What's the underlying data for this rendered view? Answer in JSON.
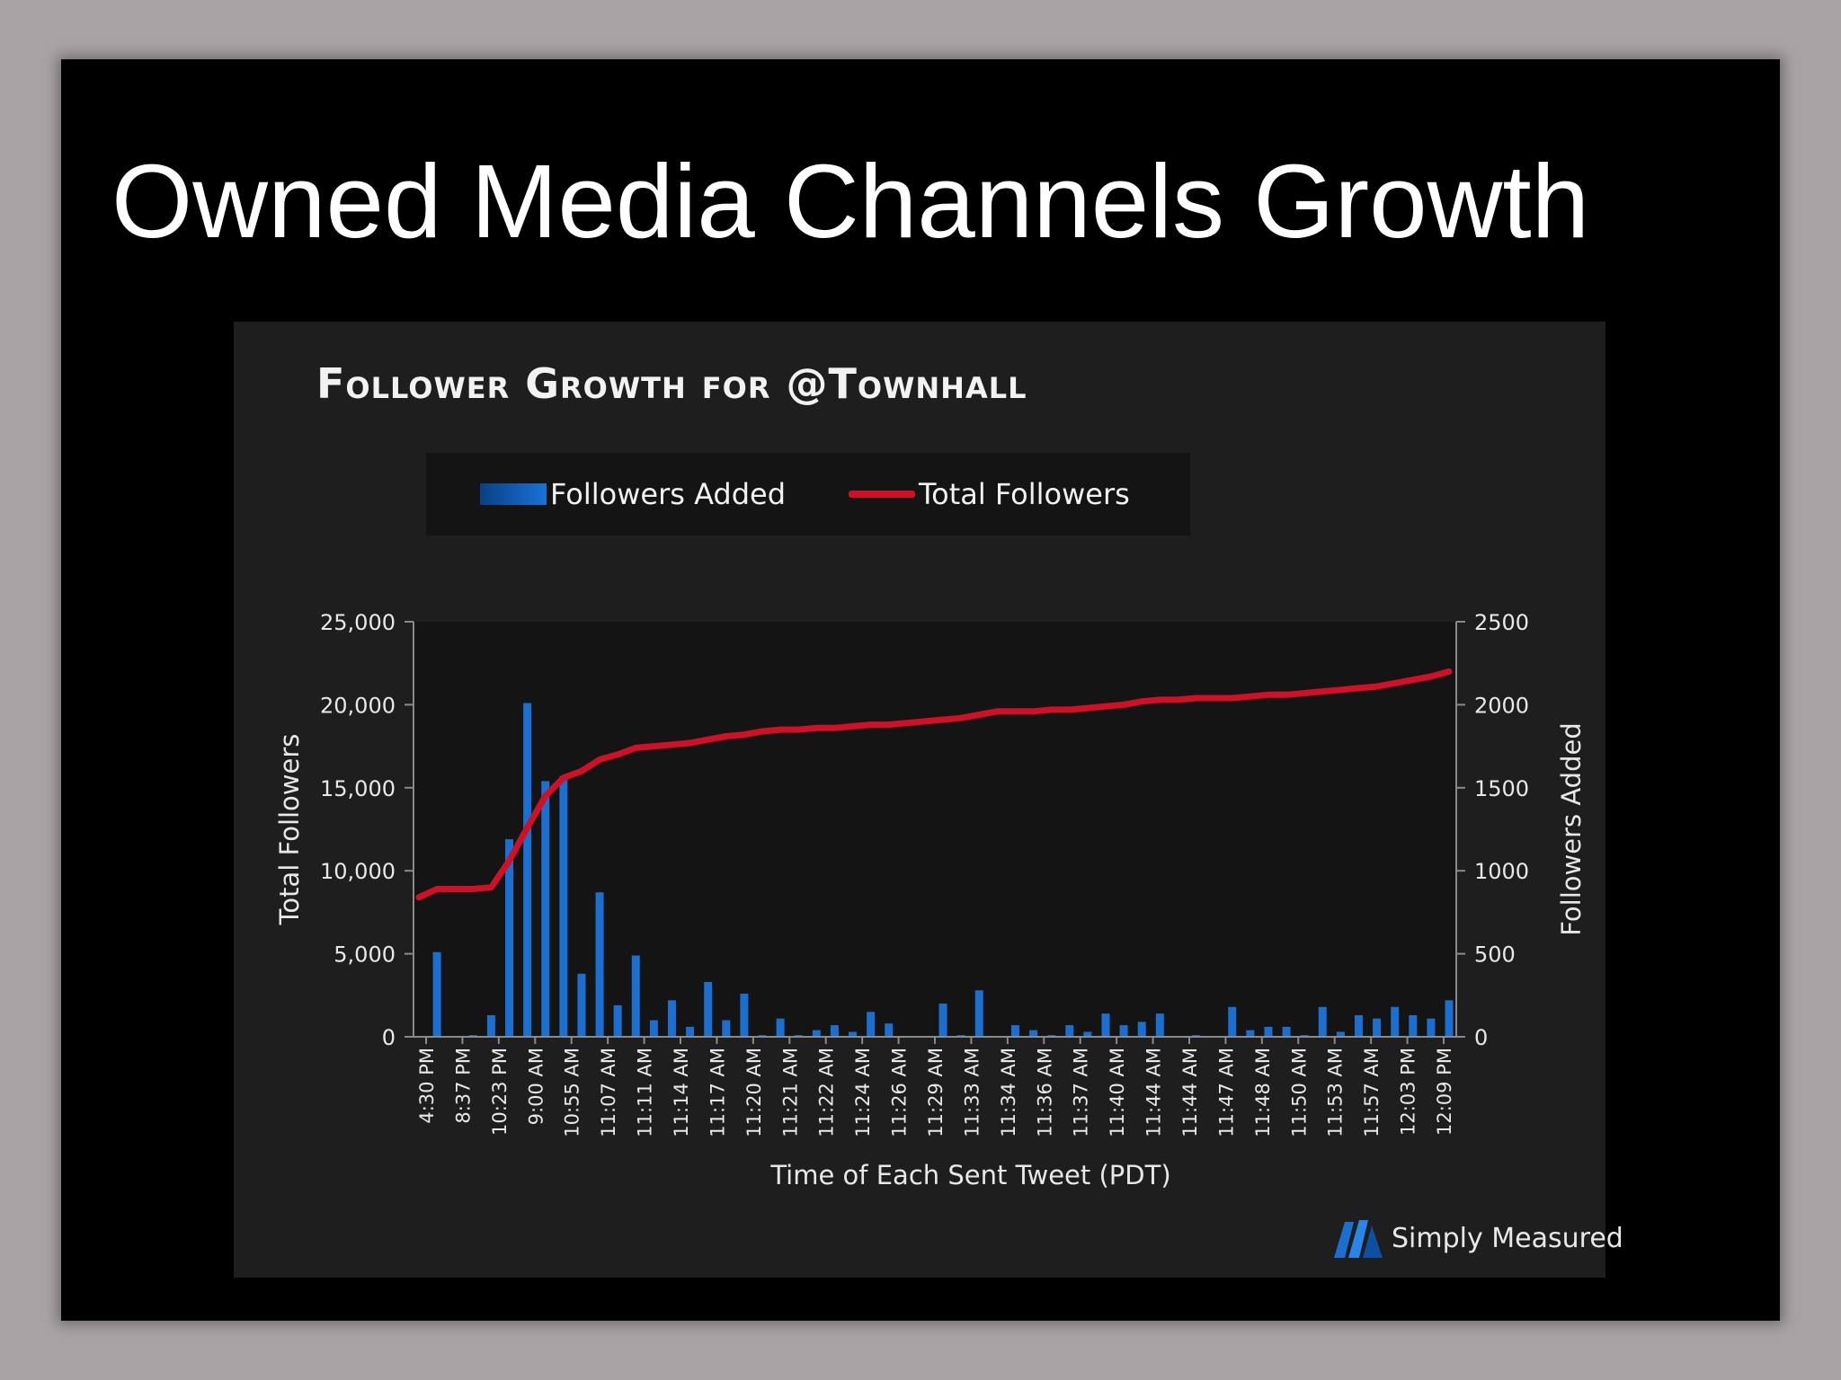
{
  "slide": {
    "title": "Owned Media Channels Growth",
    "brand": "Simply Measured",
    "brand_icon": "simply-measured-logo-icon"
  },
  "colors": {
    "bar": "#1a6fd1",
    "line": "#d01026",
    "panel": "#1e1e1e",
    "text": "#e8e8e8"
  },
  "chart_data": {
    "type": "bar+line",
    "title": "Follower Growth for @Townhall",
    "xlabel": "Time of Each Sent Tweet  (PDT)",
    "ylabel_left": "Total Followers",
    "ylabel_right": "Followers Added",
    "ylim_left": [
      0,
      25000
    ],
    "ylim_right": [
      0,
      2500
    ],
    "yticks_left": [
      "0",
      "5,000",
      "10,000",
      "15,000",
      "20,000",
      "25,000"
    ],
    "yticks_right": [
      "0",
      "500",
      "1000",
      "1500",
      "2000",
      "2500"
    ],
    "legend": [
      "Followers Added",
      "Total Followers"
    ],
    "legend_position": "top",
    "x_tick_labels": [
      "4:30 PM",
      "8:37 PM",
      "10:23 PM",
      "9:00 AM",
      "10:55 AM",
      "11:07 AM",
      "11:11 AM",
      "11:14 AM",
      "11:17 AM",
      "11:20 AM",
      "11:21 AM",
      "11:22 AM",
      "11:24 AM",
      "11:26 AM",
      "11:29 AM",
      "11:33 AM",
      "11:34 AM",
      "11:36 AM",
      "11:37 AM",
      "11:40 AM",
      "11:44 AM",
      "11:44 AM",
      "11:47 AM",
      "11:48 AM",
      "11:50 AM",
      "11:53 AM",
      "11:57 AM",
      "12:03 PM",
      "12:09 PM"
    ],
    "series": [
      {
        "name": "Followers Added",
        "type": "bar",
        "axis": "right",
        "values": [
          0,
          510,
          0,
          10,
          130,
          1190,
          2010,
          1540,
          1570,
          380,
          870,
          190,
          490,
          100,
          220,
          60,
          330,
          100,
          260,
          10,
          110,
          10,
          40,
          70,
          30,
          150,
          80,
          0,
          0,
          200,
          10,
          280,
          0,
          70,
          40,
          10,
          70,
          30,
          140,
          70,
          90,
          140,
          0,
          10,
          0,
          180,
          40,
          60,
          60,
          10,
          180,
          30,
          130,
          110,
          180,
          130,
          110,
          220
        ]
      },
      {
        "name": "Total Followers",
        "type": "line",
        "axis": "left",
        "values": [
          8400,
          8900,
          8900,
          8900,
          9000,
          10600,
          12600,
          14500,
          15600,
          16000,
          16700,
          17000,
          17400,
          17500,
          17600,
          17700,
          17900,
          18100,
          18200,
          18400,
          18500,
          18500,
          18600,
          18600,
          18700,
          18800,
          18800,
          18900,
          19000,
          19100,
          19200,
          19400,
          19600,
          19600,
          19600,
          19700,
          19700,
          19800,
          19900,
          20000,
          20200,
          20300,
          20300,
          20400,
          20400,
          20400,
          20500,
          20600,
          20600,
          20700,
          20800,
          20900,
          21000,
          21100,
          21300,
          21500,
          21700,
          22000
        ]
      }
    ]
  }
}
